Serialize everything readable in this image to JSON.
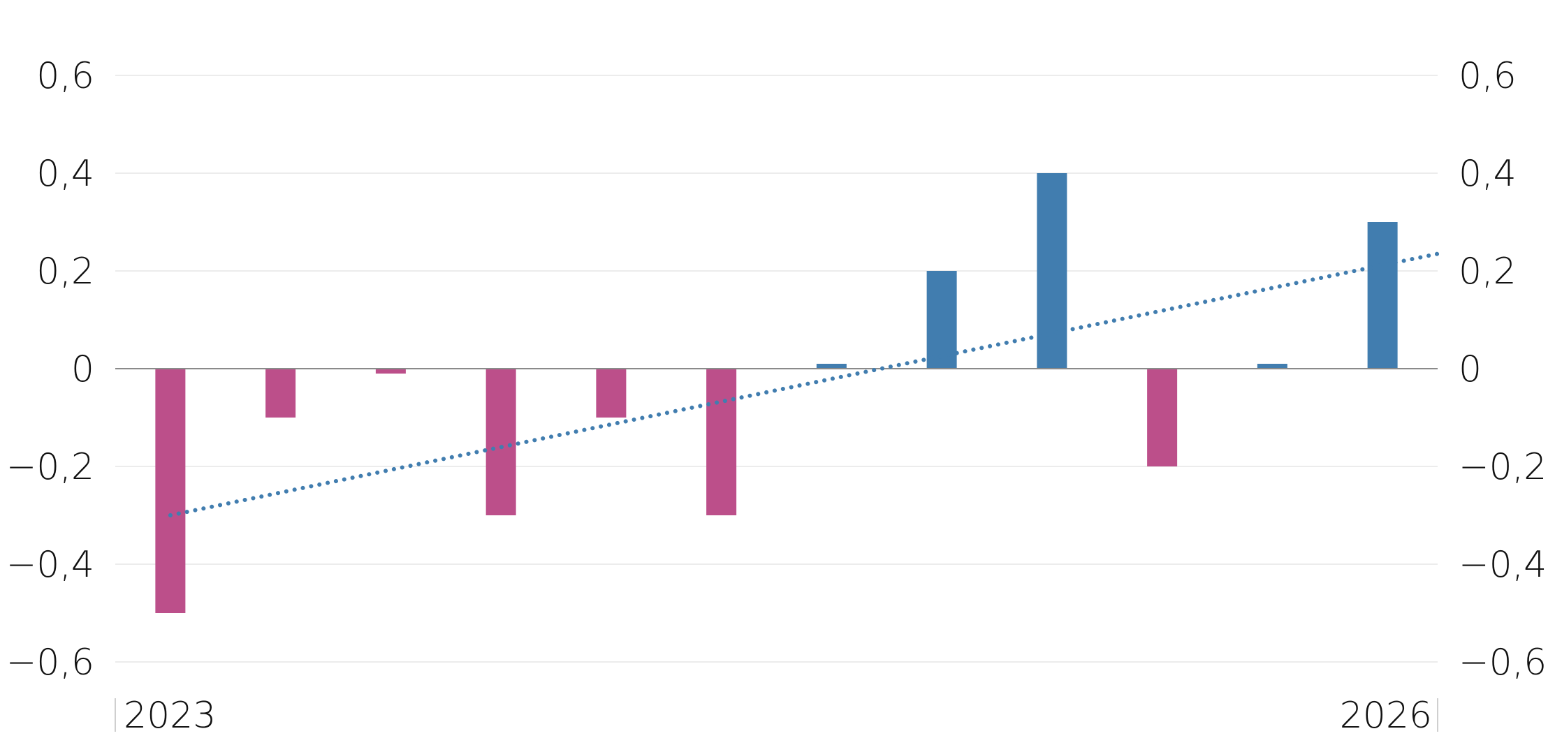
{
  "chart_data": {
    "type": "bar",
    "categories": [
      "",
      "",
      "",
      "",
      "",
      "",
      "",
      "",
      "",
      "",
      "",
      ""
    ],
    "values": [
      -0.5,
      -0.1,
      -0.01,
      -0.3,
      -0.1,
      -0.3,
      0.01,
      0.2,
      0.4,
      -0.2,
      0.01,
      0.3
    ],
    "x_tick_labels": [
      "2023",
      "2026"
    ],
    "y_ticks": [
      0.6,
      0.4,
      0.2,
      0,
      -0.2,
      -0.4,
      -0.6
    ],
    "y_tick_labels": [
      "0,6",
      "0,4",
      "0,2",
      "0",
      "−0,2",
      "−0,4",
      "−0,6"
    ],
    "ylim": [
      -0.6,
      0.6
    ],
    "dual_y_axis": true,
    "grid": true,
    "trendline": {
      "style": "dotted",
      "color": "#417daf",
      "start": -0.3,
      "end": 0.235
    },
    "colors": {
      "positive": "#417daf",
      "negative": "#bc4f8a"
    }
  }
}
